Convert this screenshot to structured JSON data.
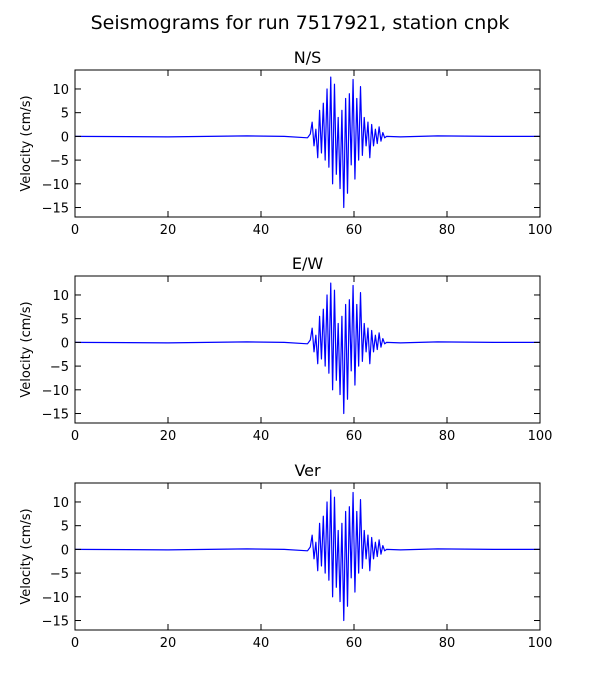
{
  "figure_title": "Seismograms for run 7517921, station cnpk",
  "chart_data": [
    {
      "type": "line",
      "title": "N/S",
      "xlabel": "",
      "ylabel": "Velocity (cm/s)",
      "xlim": [
        0,
        100
      ],
      "ylim": [
        -17,
        14
      ],
      "xticks": [
        0,
        20,
        40,
        60,
        80,
        100
      ],
      "yticks": [
        -15,
        -10,
        -5,
        0,
        5,
        10
      ],
      "grid": false,
      "line_color": "#0000ff",
      "series": [
        {
          "x": [
            0,
            20,
            37,
            45,
            50,
            50.6,
            51.0,
            51.4,
            51.8,
            52.2,
            52.6,
            53.0,
            53.4,
            53.8,
            54.2,
            54.6,
            55.0,
            55.4,
            55.8,
            56.2,
            56.6,
            57.0,
            57.4,
            57.8,
            58.2,
            58.6,
            59.0,
            59.4,
            59.8,
            60.2,
            60.6,
            61.0,
            61.4,
            61.8,
            62.2,
            62.6,
            63.0,
            63.4,
            63.8,
            64.2,
            64.6,
            65.0,
            65.4,
            65.8,
            66.2,
            66.6,
            67.0,
            70,
            78,
            90,
            100
          ],
          "y": [
            0,
            -0.1,
            0.1,
            0,
            -0.3,
            0.5,
            3.0,
            -2.0,
            1.5,
            -4.5,
            5.5,
            -3.5,
            7.0,
            -5.0,
            10.0,
            -6.5,
            12.5,
            -10.0,
            11.0,
            -8.0,
            4.0,
            -11.0,
            5.5,
            -15.0,
            8.0,
            -12.0,
            9.0,
            -6.0,
            12.0,
            -9.0,
            8.0,
            -5.0,
            10.5,
            -4.0,
            4.0,
            -2.0,
            3.0,
            -4.5,
            2.5,
            -2.0,
            1.5,
            -1.5,
            2.0,
            -1.0,
            0.8,
            -0.3,
            0,
            -0.1,
            0.1,
            0,
            0
          ]
        }
      ]
    },
    {
      "type": "line",
      "title": "E/W",
      "xlabel": "",
      "ylabel": "Velocity (cm/s)",
      "xlim": [
        0,
        100
      ],
      "ylim": [
        -17,
        14
      ],
      "xticks": [
        0,
        20,
        40,
        60,
        80,
        100
      ],
      "yticks": [
        -15,
        -10,
        -5,
        0,
        5,
        10
      ],
      "grid": false,
      "line_color": "#0000ff",
      "series": [
        {
          "x": [
            0,
            20,
            37,
            45,
            50,
            50.6,
            51.0,
            51.4,
            51.8,
            52.2,
            52.6,
            53.0,
            53.4,
            53.8,
            54.2,
            54.6,
            55.0,
            55.4,
            55.8,
            56.2,
            56.6,
            57.0,
            57.4,
            57.8,
            58.2,
            58.6,
            59.0,
            59.4,
            59.8,
            60.2,
            60.6,
            61.0,
            61.4,
            61.8,
            62.2,
            62.6,
            63.0,
            63.4,
            63.8,
            64.2,
            64.6,
            65.0,
            65.4,
            65.8,
            66.2,
            66.6,
            67.0,
            70,
            78,
            90,
            100
          ],
          "y": [
            0,
            -0.1,
            0.1,
            0,
            -0.3,
            0.5,
            3.0,
            -2.0,
            1.5,
            -4.5,
            5.5,
            -3.5,
            7.0,
            -5.0,
            10.0,
            -6.5,
            12.5,
            -10.0,
            11.0,
            -8.0,
            4.0,
            -11.0,
            5.5,
            -15.0,
            8.0,
            -12.0,
            9.0,
            -6.0,
            12.0,
            -9.0,
            8.0,
            -5.0,
            10.5,
            -4.0,
            4.0,
            -2.0,
            3.0,
            -4.5,
            2.5,
            -2.0,
            1.5,
            -1.5,
            2.0,
            -1.0,
            0.8,
            -0.3,
            0,
            -0.1,
            0.1,
            0,
            0
          ]
        }
      ]
    },
    {
      "type": "line",
      "title": "Ver",
      "xlabel": "",
      "ylabel": "Velocity (cm/s)",
      "xlim": [
        0,
        100
      ],
      "ylim": [
        -17,
        14
      ],
      "xticks": [
        0,
        20,
        40,
        60,
        80,
        100
      ],
      "yticks": [
        -15,
        -10,
        -5,
        0,
        5,
        10
      ],
      "grid": false,
      "line_color": "#0000ff",
      "series": [
        {
          "x": [
            0,
            20,
            37,
            45,
            50,
            50.6,
            51.0,
            51.4,
            51.8,
            52.2,
            52.6,
            53.0,
            53.4,
            53.8,
            54.2,
            54.6,
            55.0,
            55.4,
            55.8,
            56.2,
            56.6,
            57.0,
            57.4,
            57.8,
            58.2,
            58.6,
            59.0,
            59.4,
            59.8,
            60.2,
            60.6,
            61.0,
            61.4,
            61.8,
            62.2,
            62.6,
            63.0,
            63.4,
            63.8,
            64.2,
            64.6,
            65.0,
            65.4,
            65.8,
            66.2,
            66.6,
            67.0,
            70,
            78,
            90,
            100
          ],
          "y": [
            0,
            -0.1,
            0.1,
            0,
            -0.3,
            0.5,
            3.0,
            -2.0,
            1.5,
            -4.5,
            5.5,
            -3.5,
            7.0,
            -5.0,
            10.0,
            -6.5,
            12.5,
            -10.0,
            11.0,
            -8.0,
            4.0,
            -11.0,
            5.5,
            -15.0,
            8.0,
            -12.0,
            9.0,
            -6.0,
            12.0,
            -9.0,
            8.0,
            -5.0,
            10.5,
            -4.0,
            4.0,
            -2.0,
            3.0,
            -4.5,
            2.5,
            -2.0,
            1.5,
            -1.5,
            2.0,
            -1.0,
            0.8,
            -0.3,
            0,
            -0.1,
            0.1,
            0,
            0
          ]
        }
      ]
    }
  ]
}
